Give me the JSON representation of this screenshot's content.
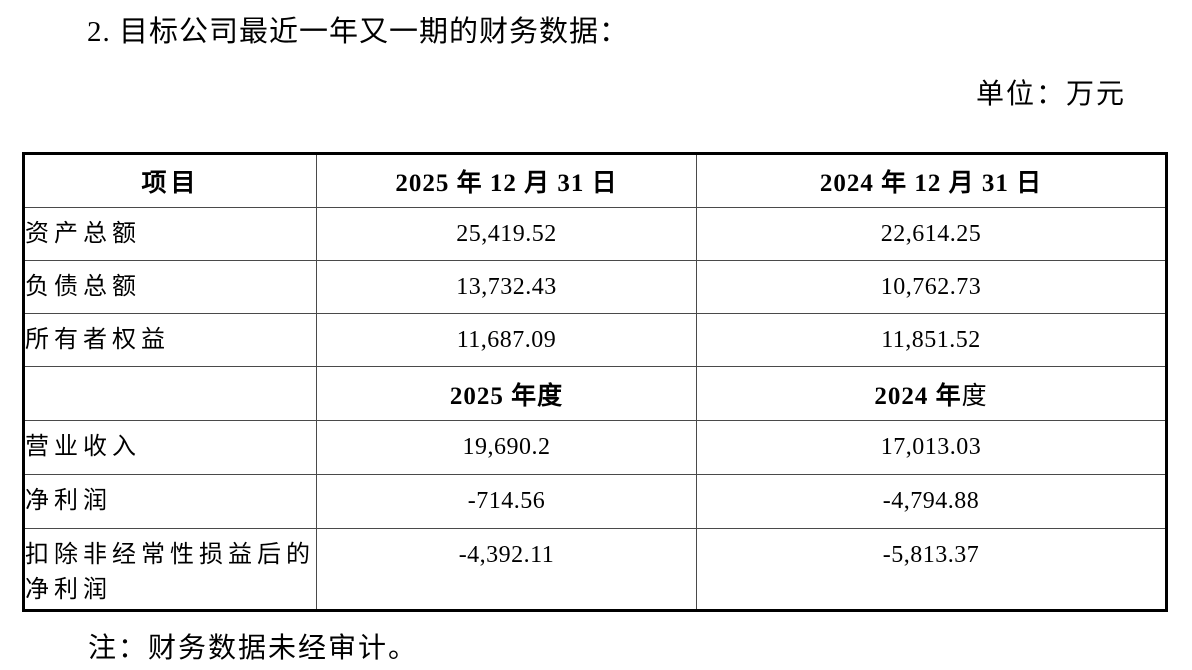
{
  "document": {
    "heading": "2. 目标公司最近一年又一期的财务数据：",
    "unit_label": "单位：万元",
    "footnote": "注：财务数据未经审计。"
  },
  "table": {
    "columns": {
      "item": "项目",
      "period_a": "2025 年 12 月 31 日",
      "period_b": "2024 年 12 月 31 日"
    },
    "balance_rows": [
      {
        "label": "资产总额",
        "value_a": "25,419.52",
        "value_b": "22,614.25"
      },
      {
        "label": "负债总额",
        "value_a": "13,732.43",
        "value_b": "10,762.73"
      },
      {
        "label": "所有者权益",
        "value_a": "11,687.09",
        "value_b": "11,851.52"
      }
    ],
    "period_header": {
      "label": "",
      "a_bold": "2025 年度",
      "a_normal": "",
      "b_bold": "2024 年",
      "b_normal": "度"
    },
    "income_rows": [
      {
        "label": "营业收入",
        "value_a": "19,690.2",
        "value_b": "17,013.03"
      },
      {
        "label": "净利润",
        "value_a": "-714.56",
        "value_b": "-4,794.88"
      },
      {
        "label": "扣除非经常性损益后的净利润",
        "value_a": "-4,392.11",
        "value_b": "-5,813.37"
      }
    ]
  }
}
